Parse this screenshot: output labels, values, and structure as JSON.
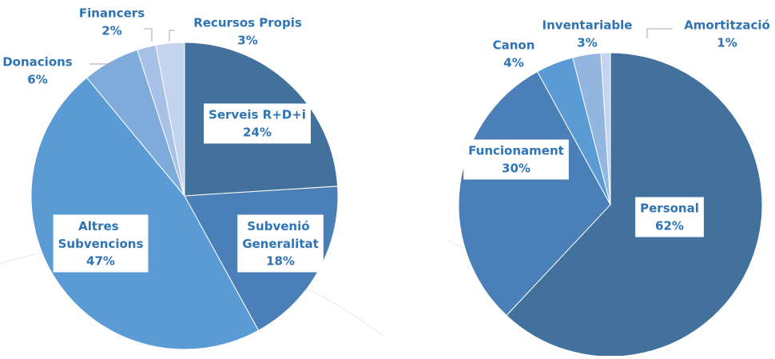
{
  "chart_data": [
    {
      "type": "pie",
      "categories": [
        "Serveis R+D+i",
        "Subvenió Generalitat",
        "Altres Subvencions",
        "Donacions",
        "Financers",
        "Recursos Propis"
      ],
      "values": [
        24,
        18,
        47,
        6,
        2,
        3
      ],
      "value_labels": [
        "24%",
        "18%",
        "47%",
        "6%",
        "2%",
        "3%"
      ],
      "colors": [
        "#41719c",
        "#4a7fb8",
        "#5b9bd5",
        "#7eaadc",
        "#a7c2e6",
        "#c4d4ee"
      ]
    },
    {
      "type": "pie",
      "categories": [
        "Personal",
        "Funcionament",
        "Canon",
        "Inventariable",
        "Amortització"
      ],
      "values": [
        62,
        30,
        4,
        3,
        1
      ],
      "value_labels": [
        "62%",
        "30%",
        "4%",
        "3%",
        "1%"
      ],
      "colors": [
        "#41719c",
        "#4a7fb8",
        "#5b9bd5",
        "#93b6e0",
        "#c4d4ee"
      ]
    }
  ]
}
